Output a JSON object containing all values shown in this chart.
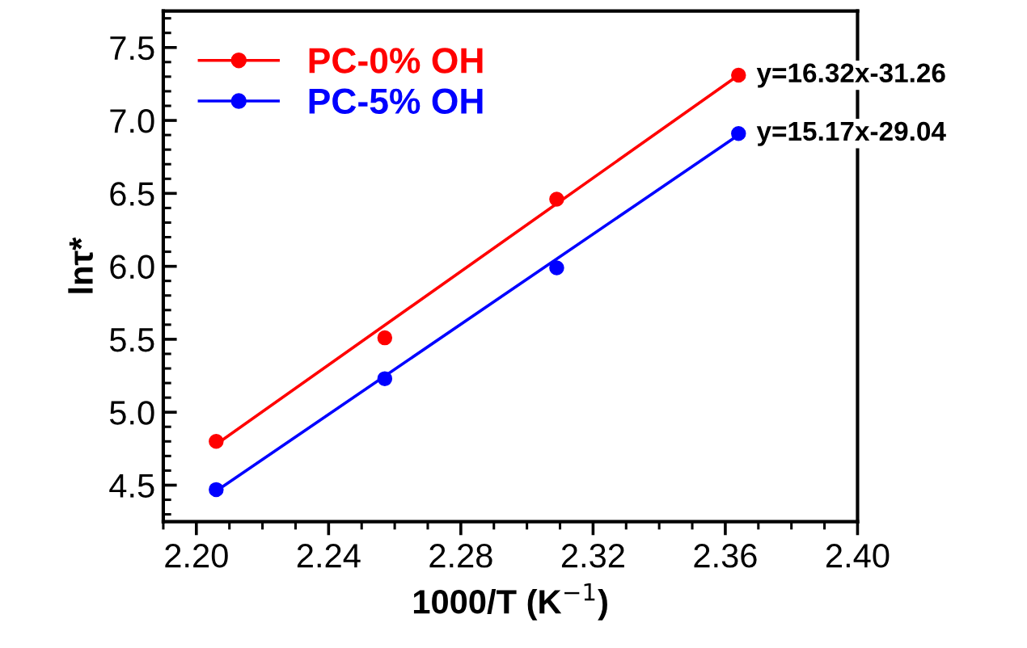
{
  "chart_data": {
    "type": "scatter",
    "xlabel": "1000/T (K$^{−1}$)",
    "ylabel": "lnτ*",
    "xlim": [
      2.19,
      2.4
    ],
    "xticks": [
      {
        "value": 2.2,
        "label": "2.20"
      },
      2.24,
      2.28,
      2.32,
      2.36,
      {
        "value": 2.4,
        "label": "2.40"
      }
    ],
    "ylim": [
      4.25,
      7.75
    ],
    "yticks": [
      4.5,
      {
        "value": 5.0,
        "label": "5.0"
      },
      5.5,
      {
        "value": 6.0,
        "label": "6.0"
      },
      6.5,
      {
        "value": 7.0,
        "label": "7.0"
      },
      7.5
    ],
    "grid": false,
    "legend": "top left",
    "series": [
      {
        "name": "PC-0% OH",
        "marker": "circle",
        "color": "#ff0000",
        "x": [
          2.206,
          2.257,
          2.309,
          2.364
        ],
        "values": [
          4.8,
          5.51,
          6.46,
          7.31
        ]
      },
      {
        "name": "PC-5% OH",
        "marker": "circle",
        "color": "#0000ff",
        "x": [
          2.206,
          2.257,
          2.309,
          2.364
        ],
        "values": [
          4.47,
          5.23,
          5.99,
          6.91
        ]
      },
      {
        "type": "line",
        "color": "#ff0000",
        "x": [
          2.206,
          2.364
        ],
        "values": [
          4.78,
          7.31
        ]
      },
      {
        "type": "line",
        "color": "#0000ff",
        "x": [
          2.206,
          2.364
        ],
        "values": [
          4.46,
          6.9
        ]
      }
    ],
    "annotations": [
      {
        "text": "y=16.32x-31.26",
        "x": 2.364,
        "y": 7.31
      },
      {
        "text": "y=15.17x-29.04",
        "x": 2.364,
        "y": 6.91
      }
    ]
  }
}
